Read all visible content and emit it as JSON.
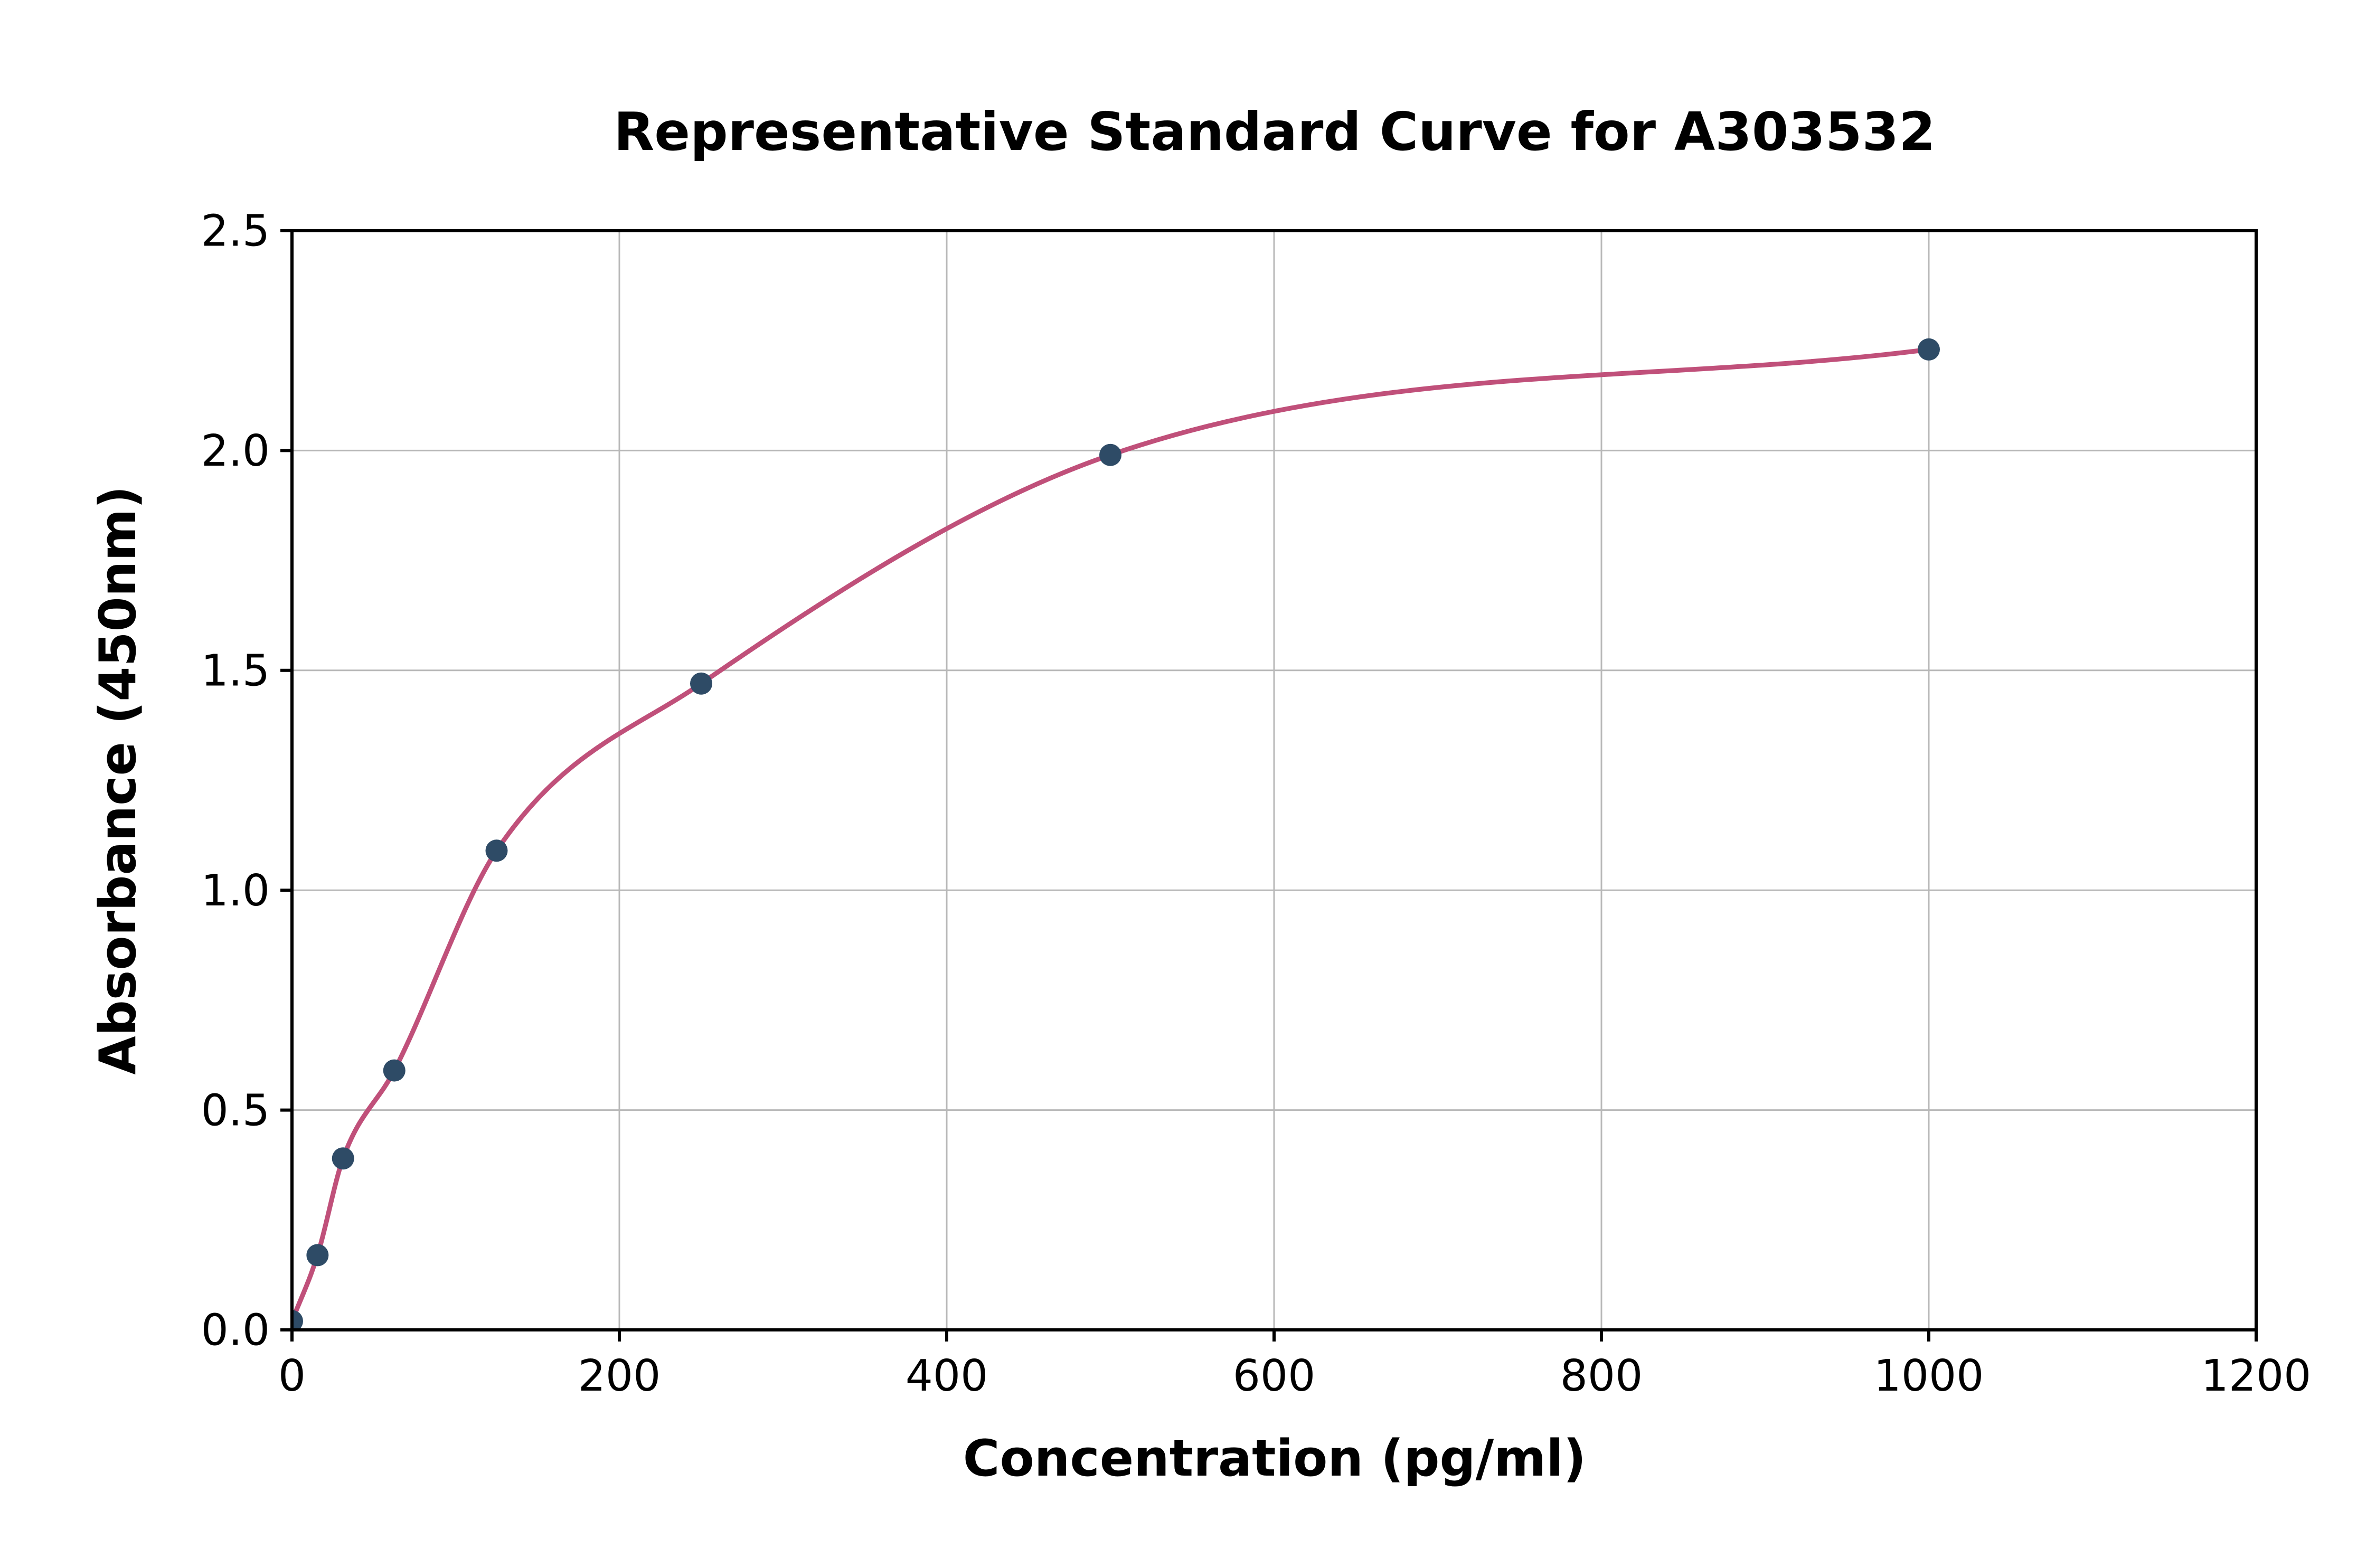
{
  "chart_data": {
    "type": "scatter",
    "title": "Representative Standard Curve for A303532",
    "xlabel": "Concentration (pg/ml)",
    "ylabel": "Absorbance (450nm)",
    "xlim": [
      0,
      1200
    ],
    "ylim": [
      0,
      2.5
    ],
    "grid": true,
    "legend": "none",
    "xtick_values": [
      0,
      200,
      400,
      600,
      800,
      1000,
      1200
    ],
    "xtick_labels": [
      "0",
      "200",
      "400",
      "600",
      "800",
      "1000",
      "1200"
    ],
    "ytick_values": [
      0,
      0.5,
      1.0,
      1.5,
      2.0,
      2.5
    ],
    "ytick_labels": [
      "0.0",
      "0.5",
      "1.0",
      "1.5",
      "2.0",
      "2.5"
    ],
    "points": [
      {
        "x": 0,
        "y": 0.02
      },
      {
        "x": 15.6,
        "y": 0.17
      },
      {
        "x": 31.2,
        "y": 0.39
      },
      {
        "x": 62.5,
        "y": 0.59
      },
      {
        "x": 125,
        "y": 1.09
      },
      {
        "x": 250,
        "y": 1.47
      },
      {
        "x": 500,
        "y": 1.99
      },
      {
        "x": 1000,
        "y": 2.23
      }
    ],
    "curve_description": "smooth saturating fit curve through the standard points, from (0, 0.02) to (1000, 2.23)",
    "colors": {
      "point": "#2e4b66",
      "curve": "#c0507a",
      "grid": "#b8b8b8",
      "frame": "#000000",
      "text": "#000000",
      "background": "#ffffff"
    }
  }
}
